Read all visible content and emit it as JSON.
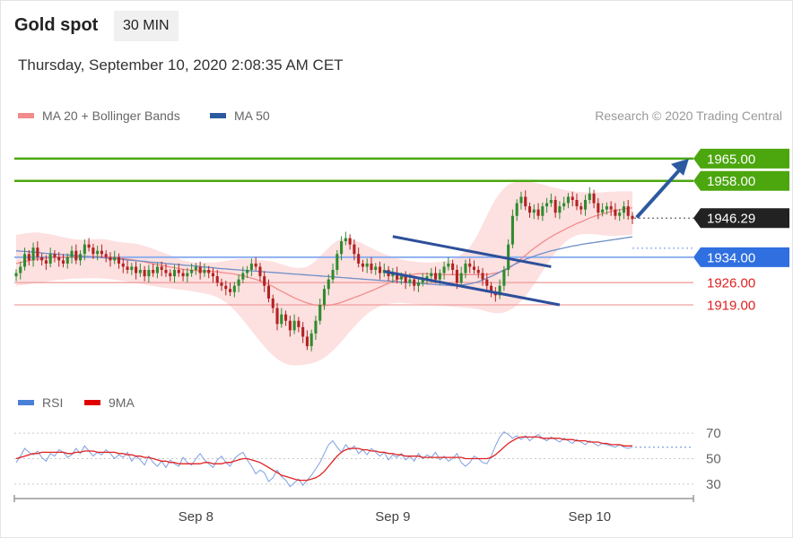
{
  "header": {
    "title": "Gold spot",
    "timeframe": "30 MIN",
    "timestamp": "Thursday, September 10, 2020 2:08:35 AM CET",
    "credit": "Research © 2020 Trading Central"
  },
  "legend": {
    "price": [
      {
        "label": "MA 20 + Bollinger Bands",
        "color": "#f28c8c"
      },
      {
        "label": "MA 50",
        "color": "#2c5aa0"
      }
    ],
    "rsi": [
      {
        "label": "RSI",
        "color": "#4a7fd8"
      },
      {
        "label": "9MA",
        "color": "#e00000"
      }
    ]
  },
  "colors": {
    "resistance": "#4ca60e",
    "support_strong": "#2f6fe0",
    "support_weak": "#e02020",
    "current_price": "#222222",
    "bollinger_fill": "#fde0e0",
    "candle_up": "#2e8b2e",
    "candle_down": "#b22222",
    "channel": "#2c4f9a"
  },
  "chart_data": [
    {
      "type": "candlestick",
      "title": "Gold spot",
      "ylim": [
        1897,
        1974
      ],
      "x_labels": [
        "Sep 8",
        "Sep 9",
        "Sep 10"
      ],
      "levels": [
        {
          "value": 1965.0,
          "label": "1965.00",
          "kind": "resistance"
        },
        {
          "value": 1958.0,
          "label": "1958.00",
          "kind": "resistance"
        },
        {
          "value": 1946.29,
          "label": "1946.29",
          "kind": "current"
        },
        {
          "value": 1934.0,
          "label": "1934.00",
          "kind": "support-strong"
        },
        {
          "value": 1926.0,
          "label": "1926.00",
          "kind": "support-weak"
        },
        {
          "value": 1919.0,
          "label": "1919.00",
          "kind": "support-weak"
        }
      ],
      "close": [
        1929,
        1931,
        1935,
        1933,
        1937,
        1934,
        1933,
        1932,
        1935,
        1934,
        1933,
        1932,
        1934,
        1936,
        1933,
        1935,
        1938,
        1937,
        1935,
        1936,
        1935,
        1934,
        1933,
        1934,
        1932,
        1931,
        1930,
        1931,
        1929,
        1930,
        1928,
        1930,
        1929,
        1931,
        1930,
        1929,
        1928,
        1930,
        1929,
        1928,
        1929,
        1930,
        1931,
        1929,
        1930,
        1929,
        1928,
        1926,
        1925,
        1924,
        1923,
        1925,
        1927,
        1929,
        1930,
        1932,
        1931,
        1928,
        1925,
        1921,
        1918,
        1913,
        1916,
        1914,
        1911,
        1914,
        1912,
        1909,
        1906,
        1910,
        1914,
        1919,
        1924,
        1927,
        1930,
        1935,
        1939,
        1940,
        1938,
        1935,
        1932,
        1931,
        1932,
        1930,
        1931,
        1929,
        1930,
        1928,
        1929,
        1927,
        1928,
        1926,
        1927,
        1925,
        1926,
        1927,
        1928,
        1929,
        1927,
        1929,
        1931,
        1932,
        1930,
        1926,
        1929,
        1932,
        1931,
        1930,
        1929,
        1927,
        1925,
        1923,
        1922,
        1925,
        1930,
        1938,
        1947,
        1951,
        1953,
        1950,
        1948,
        1949,
        1947,
        1950,
        1951,
        1952,
        1948,
        1950,
        1951,
        1953,
        1952,
        1950,
        1949,
        1952,
        1954,
        1951,
        1948,
        1949,
        1950,
        1949,
        1947,
        1948,
        1950,
        1947,
        1946
      ],
      "ma20": [
        1932.0,
        1932.3,
        1932.6,
        1932.9,
        1933.2,
        1933.4,
        1933.5,
        1933.7,
        1933.8,
        1933.9,
        1934.0,
        1934.0,
        1934.1,
        1934.1,
        1934.1,
        1934.2,
        1934.2,
        1934.2,
        1934.2,
        1934.2,
        1934.2,
        1934.1,
        1934.0,
        1933.9,
        1933.8,
        1933.6,
        1933.4,
        1933.2,
        1933.0,
        1932.7,
        1932.5,
        1932.2,
        1931.9,
        1931.7,
        1931.4,
        1931.2,
        1930.9,
        1930.7,
        1930.4,
        1930.2,
        1930.0,
        1929.9,
        1929.8,
        1929.7,
        1929.6,
        1929.6,
        1929.5,
        1929.4,
        1929.2,
        1929.0,
        1928.9,
        1928.7,
        1928.4,
        1928.1,
        1927.8,
        1927.4,
        1927.0,
        1926.6,
        1926.0,
        1925.4,
        1924.8,
        1924.0,
        1923.3,
        1922.6,
        1921.9,
        1921.2,
        1920.6,
        1920.1,
        1919.6,
        1919.2,
        1918.9,
        1918.8,
        1918.8,
        1918.9,
        1919.1,
        1919.4,
        1919.8,
        1920.3,
        1920.8,
        1921.3,
        1921.8,
        1922.3,
        1922.9,
        1923.4,
        1924.0,
        1924.6,
        1925.2,
        1925.8,
        1926.4,
        1927.0,
        1927.5,
        1928.0,
        1928.4,
        1928.7,
        1928.8,
        1928.8,
        1928.8,
        1928.7,
        1928.6,
        1928.6,
        1928.5,
        1928.5,
        1928.5,
        1928.5,
        1928.5,
        1928.5,
        1928.5,
        1928.5,
        1928.5,
        1928.6,
        1928.6,
        1928.8,
        1929.0,
        1929.3,
        1929.7,
        1930.4,
        1931.3,
        1932.3,
        1933.5,
        1934.6,
        1935.7,
        1936.8,
        1937.7,
        1938.7,
        1939.6,
        1940.4,
        1941.2,
        1941.9,
        1942.6,
        1943.3,
        1943.9,
        1944.6,
        1945.1,
        1945.7,
        1946.3,
        1946.8,
        1947.2,
        1947.6,
        1948.0,
        1948.4,
        1948.7,
        1948.9,
        1949.2,
        1949.4,
        1949.5
      ],
      "bollinger_upper": [
        1941.0,
        1941.2,
        1941.5,
        1941.6,
        1941.8,
        1941.8,
        1941.6,
        1941.4,
        1941.2,
        1940.9,
        1940.6,
        1940.3,
        1940.0,
        1939.8,
        1939.6,
        1939.5,
        1939.4,
        1939.5,
        1939.6,
        1939.7,
        1939.7,
        1939.6,
        1939.3,
        1939.0,
        1938.8,
        1938.6,
        1938.5,
        1938.4,
        1938.2,
        1937.9,
        1937.5,
        1937.1,
        1936.6,
        1936.1,
        1935.6,
        1935.1,
        1934.6,
        1934.0,
        1933.5,
        1933.0,
        1932.7,
        1932.4,
        1932.3,
        1932.2,
        1932.3,
        1932.3,
        1932.4,
        1932.4,
        1932.6,
        1932.8,
        1933.1,
        1933.2,
        1933.4,
        1933.5,
        1933.5,
        1933.4,
        1933.3,
        1933.1,
        1933.0,
        1932.8,
        1932.6,
        1932.2,
        1931.8,
        1931.4,
        1931.0,
        1930.7,
        1930.6,
        1930.7,
        1931.0,
        1931.8,
        1932.9,
        1934.2,
        1935.6,
        1937.0,
        1938.2,
        1939.1,
        1939.7,
        1939.8,
        1939.7,
        1939.3,
        1938.8,
        1938.2,
        1937.6,
        1936.9,
        1936.2,
        1935.6,
        1935.0,
        1934.5,
        1934.0,
        1933.6,
        1933.3,
        1933.0,
        1932.8,
        1932.6,
        1932.5,
        1932.4,
        1932.3,
        1932.3,
        1932.4,
        1932.5,
        1932.7,
        1933.0,
        1933.4,
        1934.0,
        1934.8,
        1935.8,
        1937.2,
        1939.2,
        1941.6,
        1944.3,
        1947.1,
        1949.8,
        1952.2,
        1954.2,
        1955.7,
        1956.8,
        1957.4,
        1957.7,
        1957.8,
        1957.8,
        1957.7,
        1957.5,
        1957.2,
        1956.9,
        1956.5,
        1956.1,
        1955.8,
        1955.5,
        1955.2,
        1955.0,
        1954.8,
        1954.6,
        1954.5,
        1954.4,
        1954.4,
        1954.4,
        1954.4,
        1954.4,
        1954.5,
        1954.6,
        1954.6,
        1954.7,
        1954.7,
        1954.7,
        1954.7
      ],
      "bollinger_lower": [
        1925.0,
        1925.1,
        1925.3,
        1925.5,
        1925.7,
        1925.9,
        1926.1,
        1926.3,
        1926.5,
        1926.7,
        1926.8,
        1926.9,
        1927.1,
        1927.2,
        1927.3,
        1927.3,
        1927.4,
        1927.4,
        1927.4,
        1927.4,
        1927.3,
        1927.2,
        1927.1,
        1926.9,
        1926.7,
        1926.5,
        1926.3,
        1926.1,
        1925.9,
        1925.6,
        1925.4,
        1925.1,
        1924.9,
        1924.7,
        1924.5,
        1924.3,
        1924.2,
        1924.0,
        1923.8,
        1923.7,
        1923.5,
        1923.3,
        1923.1,
        1922.9,
        1922.6,
        1922.3,
        1921.9,
        1921.4,
        1920.7,
        1919.8,
        1918.7,
        1917.4,
        1915.9,
        1914.3,
        1912.6,
        1910.9,
        1909.2,
        1907.5,
        1905.9,
        1904.4,
        1903.1,
        1902.0,
        1901.1,
        1900.5,
        1900.1,
        1900.0,
        1900.0,
        1900.1,
        1900.3,
        1900.6,
        1901.0,
        1901.6,
        1902.4,
        1903.4,
        1904.6,
        1905.9,
        1907.4,
        1909.0,
        1910.6,
        1912.1,
        1913.6,
        1914.9,
        1916.1,
        1917.1,
        1917.9,
        1918.5,
        1919.0,
        1919.3,
        1919.5,
        1919.6,
        1919.6,
        1919.5,
        1919.4,
        1919.3,
        1919.2,
        1919.1,
        1919.0,
        1918.9,
        1918.8,
        1918.7,
        1918.6,
        1918.5,
        1918.4,
        1918.3,
        1918.2,
        1918.1,
        1918.0,
        1917.8,
        1917.6,
        1917.3,
        1916.9,
        1916.6,
        1916.4,
        1916.4,
        1916.6,
        1917.1,
        1917.8,
        1918.9,
        1920.2,
        1921.8,
        1923.5,
        1925.4,
        1927.4,
        1929.5,
        1931.6,
        1933.6,
        1935.4,
        1937.0,
        1938.4,
        1939.5,
        1940.3,
        1940.9,
        1941.2,
        1941.3,
        1941.3,
        1941.2,
        1941.1,
        1940.9,
        1940.8,
        1940.7,
        1940.7,
        1940.8,
        1940.9,
        1941.0,
        1941.1
      ],
      "ma50": [
        1936.0,
        1935.9,
        1935.8,
        1935.7,
        1935.6,
        1935.5,
        1935.3,
        1935.2,
        1935.1,
        1935.0,
        1934.9,
        1934.8,
        1934.7,
        1934.6,
        1934.5,
        1934.4,
        1934.3,
        1934.2,
        1934.1,
        1934.0,
        1933.9,
        1933.7,
        1933.6,
        1933.5,
        1933.4,
        1933.3,
        1933.1,
        1933.0,
        1932.9,
        1932.8,
        1932.7,
        1932.5,
        1932.4,
        1932.3,
        1932.2,
        1932.0,
        1931.9,
        1931.8,
        1931.7,
        1931.5,
        1931.4,
        1931.3,
        1931.2,
        1931.0,
        1930.9,
        1930.8,
        1930.7,
        1930.5,
        1930.4,
        1930.3,
        1930.2,
        1930.1,
        1930.0,
        1929.9,
        1929.8,
        1929.7,
        1929.6,
        1929.5,
        1929.4,
        1929.3,
        1929.2,
        1929.1,
        1929.0,
        1928.9,
        1928.8,
        1928.7,
        1928.6,
        1928.5,
        1928.4,
        1928.3,
        1928.2,
        1928.1,
        1928.0,
        1927.9,
        1927.8,
        1927.7,
        1927.6,
        1927.5,
        1927.4,
        1927.3,
        1927.2,
        1927.1,
        1927.0,
        1926.9,
        1926.8,
        1926.7,
        1926.6,
        1926.5,
        1926.4,
        1926.3,
        1926.2,
        1926.1,
        1926.0,
        1925.9,
        1925.8,
        1925.7,
        1925.6,
        1925.5,
        1925.4,
        1925.3,
        1925.2,
        1925.1,
        1925.0,
        1925.1,
        1925.2,
        1925.4,
        1925.6,
        1925.9,
        1926.3,
        1926.8,
        1927.4,
        1928.0,
        1928.6,
        1929.3,
        1930.0,
        1930.7,
        1931.4,
        1932.1,
        1932.7,
        1933.3,
        1933.8,
        1934.3,
        1934.8,
        1935.2,
        1935.6,
        1936.0,
        1936.3,
        1936.6,
        1936.9,
        1937.2,
        1937.5,
        1937.7,
        1938.0,
        1938.2,
        1938.4,
        1938.6,
        1938.8,
        1939.0,
        1939.2,
        1939.4,
        1939.6,
        1939.8,
        1940.0,
        1940.2,
        1940.4
      ]
    },
    {
      "type": "line",
      "title": "RSI",
      "ylim": [
        25,
        75
      ],
      "y_ticks": [
        30,
        50,
        70
      ],
      "x_labels": [
        "Sep 8",
        "Sep 9",
        "Sep 10"
      ],
      "series": [
        {
          "name": "RSI",
          "values": [
            47,
            52,
            58,
            55,
            53,
            56,
            51,
            48,
            54,
            52,
            57,
            55,
            51,
            53,
            58,
            54,
            60,
            56,
            52,
            55,
            53,
            57,
            54,
            50,
            53,
            51,
            55,
            48,
            52,
            49,
            45,
            52,
            47,
            44,
            48,
            43,
            49,
            46,
            44,
            51,
            47,
            45,
            50,
            54,
            49,
            46,
            43,
            49,
            52,
            47,
            44,
            50,
            53,
            55,
            49,
            44,
            38,
            41,
            39,
            32,
            35,
            41,
            36,
            33,
            28,
            31,
            34,
            29,
            33,
            37,
            42,
            47,
            54,
            61,
            64,
            59,
            55,
            61,
            57,
            60,
            54,
            57,
            53,
            58,
            55,
            52,
            55,
            49,
            53,
            51,
            54,
            49,
            52,
            48,
            54,
            50,
            53,
            51,
            55,
            49,
            52,
            48,
            50,
            54,
            47,
            44,
            47,
            52,
            50,
            47,
            46,
            52,
            60,
            67,
            71,
            69,
            66,
            68,
            65,
            68,
            64,
            67,
            69,
            66,
            64,
            67,
            65,
            63,
            66,
            64,
            62,
            65,
            63,
            61,
            64,
            62,
            60,
            62,
            61,
            60,
            59,
            61,
            59,
            58,
            59
          ]
        },
        {
          "name": "9MA",
          "values": [
            50,
            51,
            52,
            53,
            54,
            54,
            55,
            55,
            55,
            55,
            55,
            55,
            54,
            54,
            55,
            55,
            56,
            56,
            56,
            55,
            55,
            55,
            55,
            55,
            54,
            54,
            53,
            53,
            52,
            52,
            51,
            51,
            50,
            49,
            48,
            48,
            47,
            47,
            46,
            46,
            46,
            46,
            46,
            46,
            47,
            47,
            46,
            46,
            46,
            47,
            47,
            48,
            49,
            50,
            50,
            49,
            48,
            47,
            45,
            43,
            41,
            39,
            37,
            36,
            35,
            34,
            33,
            33,
            33,
            34,
            35,
            37,
            40,
            44,
            48,
            52,
            55,
            57,
            58,
            58,
            58,
            57,
            57,
            56,
            56,
            55,
            55,
            54,
            54,
            53,
            53,
            52,
            52,
            52,
            52,
            51,
            51,
            51,
            51,
            51,
            51,
            51,
            51,
            51,
            51,
            50,
            50,
            50,
            50,
            50,
            50,
            51,
            53,
            56,
            59,
            62,
            64,
            66,
            67,
            67,
            67,
            67,
            67,
            66,
            66,
            66,
            66,
            66,
            65,
            65,
            65,
            64,
            64,
            64,
            63,
            63,
            63,
            62,
            62,
            61,
            61,
            61,
            60,
            60,
            60
          ]
        }
      ]
    }
  ]
}
